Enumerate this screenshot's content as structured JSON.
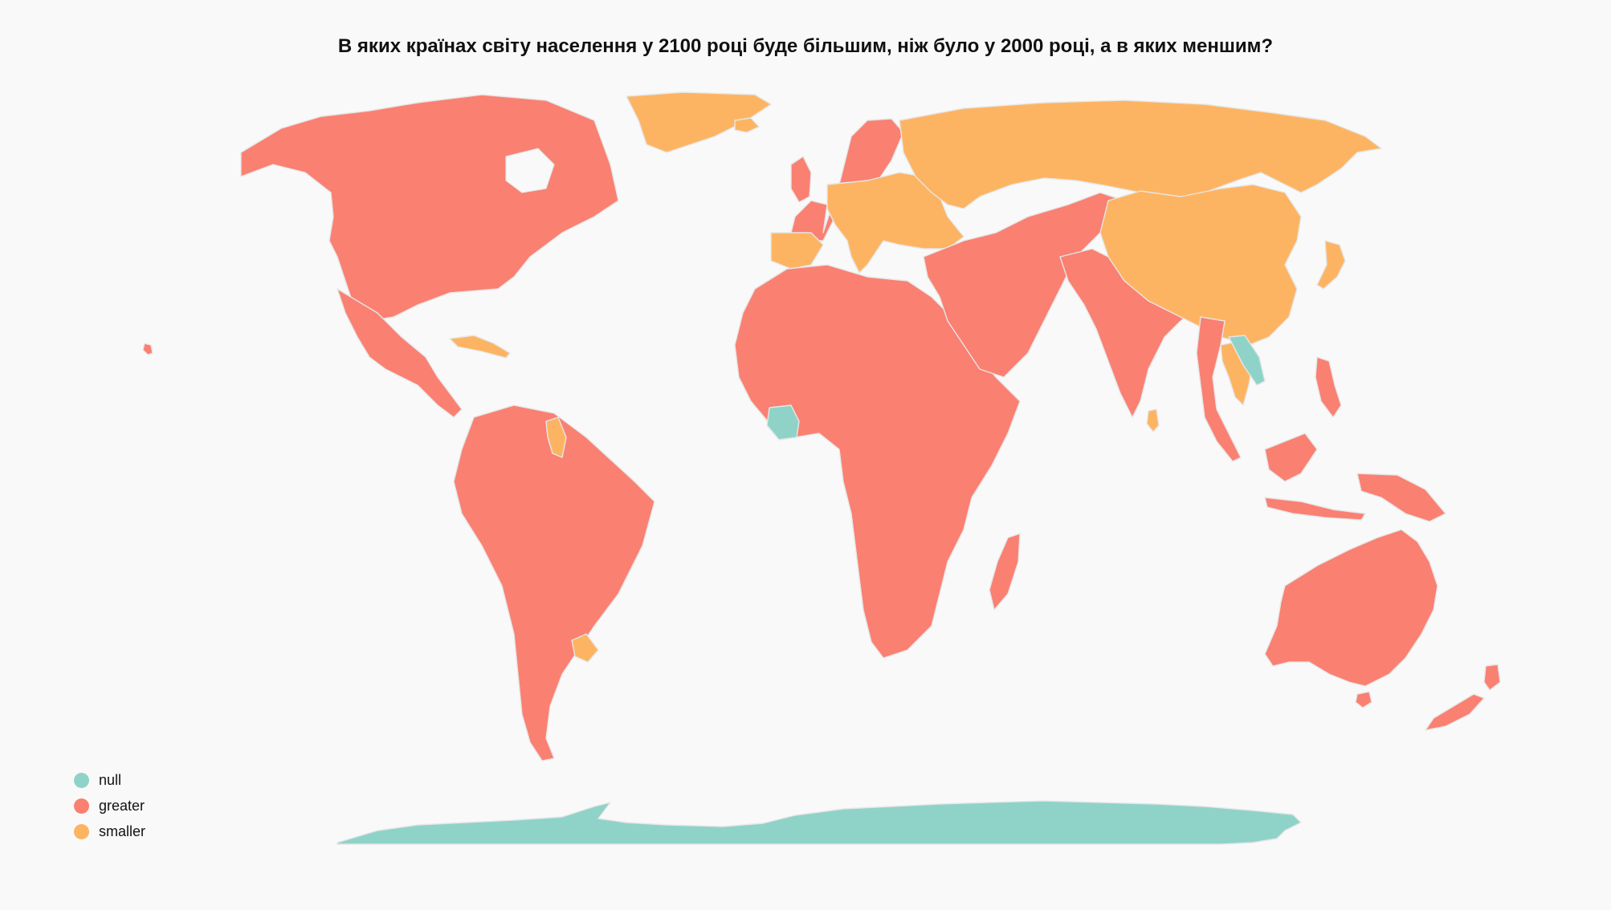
{
  "title": "В яких країнах світу населення у 2100 році буде більшим, ніж було у 2000 році, а в яких меншим?",
  "colors": {
    "null": "#8fd3c8",
    "greater": "#fa8072",
    "smaller": "#fdb462",
    "background": "#f9f9f9",
    "border": "#e6e6e6"
  },
  "legend": [
    {
      "key": "null",
      "label": "null",
      "color": "#8fd3c8"
    },
    {
      "key": "greater",
      "label": "greater",
      "color": "#fa8072"
    },
    {
      "key": "smaller",
      "label": "smaller",
      "color": "#fdb462"
    }
  ],
  "regions": [
    {
      "name": "North America",
      "category": "greater"
    },
    {
      "name": "Greenland",
      "category": "smaller"
    },
    {
      "name": "Central America",
      "category": "greater"
    },
    {
      "name": "Cuba",
      "category": "smaller"
    },
    {
      "name": "South America",
      "category": "greater"
    },
    {
      "name": "Guyana",
      "category": "smaller"
    },
    {
      "name": "Uruguay",
      "category": "smaller"
    },
    {
      "name": "Western Europe",
      "category": "greater"
    },
    {
      "name": "Central and Eastern Europe",
      "category": "smaller"
    },
    {
      "name": "Iberia",
      "category": "smaller"
    },
    {
      "name": "Russia",
      "category": "smaller"
    },
    {
      "name": "Africa",
      "category": "greater"
    },
    {
      "name": "Côte d'Ivoire",
      "category": "null"
    },
    {
      "name": "Madagascar",
      "category": "greater"
    },
    {
      "name": "Middle East and Central Asia",
      "category": "greater"
    },
    {
      "name": "South Asia",
      "category": "greater"
    },
    {
      "name": "Sri Lanka",
      "category": "smaller"
    },
    {
      "name": "China and Mongolia",
      "category": "smaller"
    },
    {
      "name": "Japan",
      "category": "smaller"
    },
    {
      "name": "Thailand",
      "category": "smaller"
    },
    {
      "name": "Laos",
      "category": "null"
    },
    {
      "name": "Southeast Asia",
      "category": "greater"
    },
    {
      "name": "Indonesia and New Guinea",
      "category": "greater"
    },
    {
      "name": "Australia",
      "category": "greater"
    },
    {
      "name": "New Zealand",
      "category": "greater"
    },
    {
      "name": "Antarctica",
      "category": "null"
    }
  ]
}
